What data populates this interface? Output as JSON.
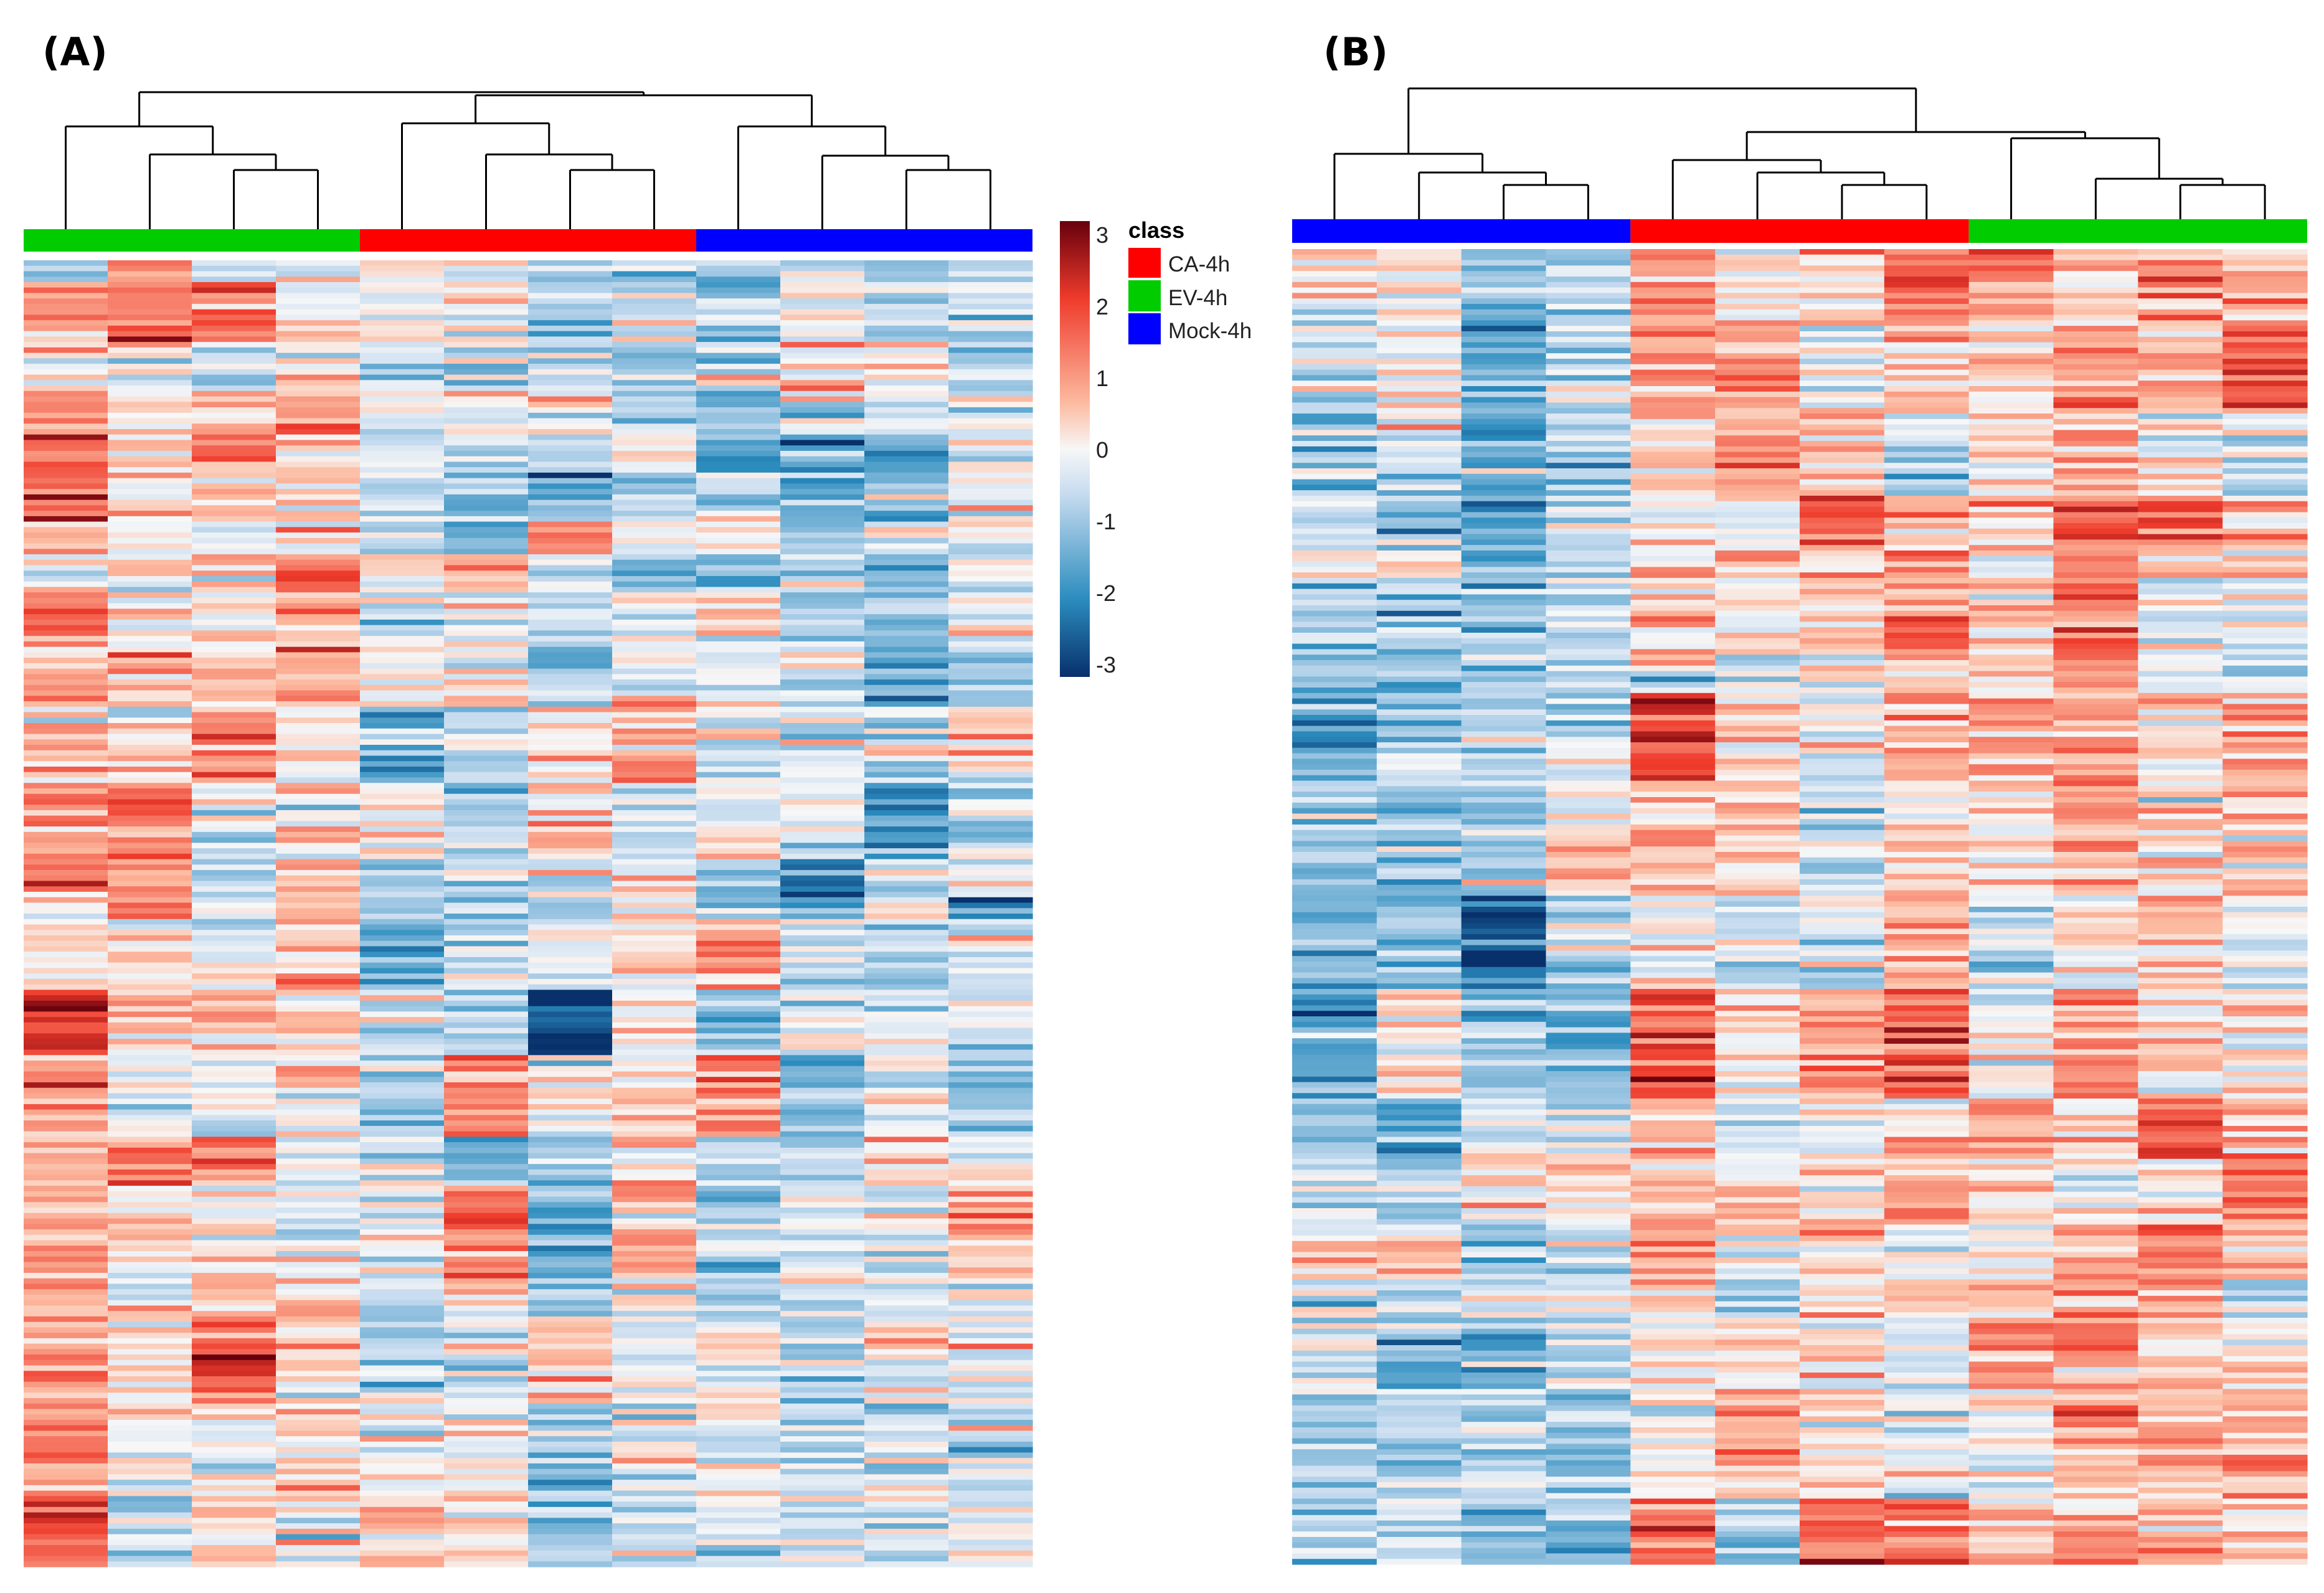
{
  "chart_data": [
    {
      "type": "heatmap",
      "panel_label": "(A)",
      "column_groups": [
        {
          "class": "EV-4h",
          "columns": 4
        },
        {
          "class": "CA-4h",
          "columns": 4
        },
        {
          "class": "Mock-4h",
          "columns": 4
        }
      ],
      "group_order": [
        "EV-4h",
        "CA-4h",
        "Mock-4h"
      ],
      "rows": 240,
      "dendrogram": "hierarchical clustering of 12 samples",
      "column_tendency": [
        0.9,
        0.55,
        0.6,
        0.5,
        -0.55,
        -0.3,
        -0.4,
        -0.2,
        -0.4,
        -0.6,
        -0.5,
        -0.4
      ]
    },
    {
      "type": "heatmap",
      "panel_label": "(B)",
      "column_groups": [
        {
          "class": "Mock-4h",
          "columns": 4
        },
        {
          "class": "CA-4h",
          "columns": 4
        },
        {
          "class": "EV-4h",
          "columns": 4
        }
      ],
      "group_order": [
        "Mock-4h",
        "CA-4h",
        "EV-4h"
      ],
      "rows": 240,
      "dendrogram": "hierarchical clustering of 12 samples",
      "column_tendency": [
        -0.9,
        -0.7,
        -0.8,
        -0.6,
        0.35,
        0.2,
        0.55,
        0.6,
        0.5,
        0.6,
        0.45,
        0.55
      ]
    }
  ],
  "legend": {
    "title": "class",
    "items": [
      {
        "label": "CA-4h",
        "color": "#ff0000"
      },
      {
        "label": "EV-4h",
        "color": "#00cc00"
      },
      {
        "label": "Mock-4h",
        "color": "#0000ff"
      }
    ]
  },
  "colorbar": {
    "ticks": [
      "3",
      "2",
      "1",
      "0",
      "-1",
      "-2",
      "-3"
    ],
    "range": [
      -3,
      3
    ],
    "stops": [
      "#08306b",
      "#2b8cbe",
      "#c6dbef",
      "#f7f7f7",
      "#fcbba1",
      "#ef3b2c",
      "#67000d"
    ]
  }
}
